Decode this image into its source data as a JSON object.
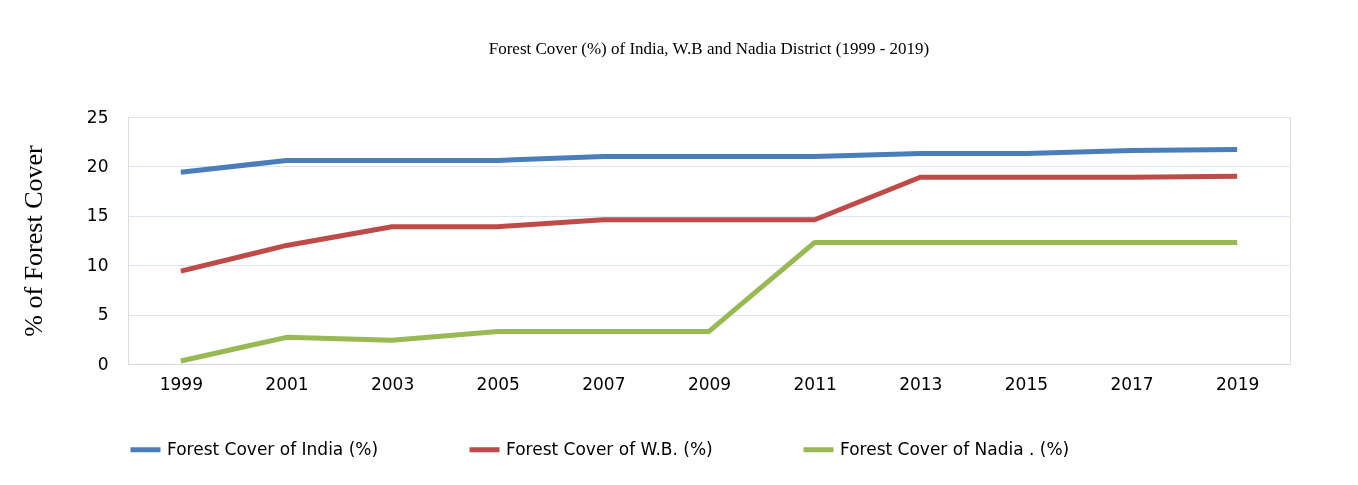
{
  "chart_data": {
    "type": "line",
    "title": "Forest Cover (%) of India, W.B and Nadia District (1999 - 2019)",
    "ylabel": "% of Forest Cover",
    "categories": [
      "1999",
      "2001",
      "2003",
      "2005",
      "2007",
      "2009",
      "2011",
      "2013",
      "2015",
      "2017",
      "2019"
    ],
    "series": [
      {
        "name": "Forest Cover of India (%)",
        "color": "#4a7ebb",
        "values": [
          19.4,
          20.6,
          20.6,
          20.6,
          21.0,
          21.0,
          21.0,
          21.3,
          21.3,
          21.6,
          21.7
        ]
      },
      {
        "name": "Forest Cover of W.B. (%)",
        "color": "#be4b48",
        "values": [
          9.4,
          12.0,
          13.9,
          13.9,
          14.6,
          14.6,
          14.6,
          18.9,
          18.9,
          18.9,
          19.0
        ]
      },
      {
        "name": "Forest Cover of Nadia . (%)",
        "color": "#98b954",
        "values": [
          0.3,
          2.7,
          2.4,
          3.3,
          3.3,
          3.3,
          12.3,
          12.3,
          12.3,
          12.3,
          12.3
        ]
      }
    ],
    "ylim": [
      0,
      25
    ],
    "yticks": [
      0,
      5,
      10,
      15,
      20,
      25
    ],
    "grid": "y",
    "legend": "bottom",
    "marker": "none",
    "line_style": "solid"
  }
}
